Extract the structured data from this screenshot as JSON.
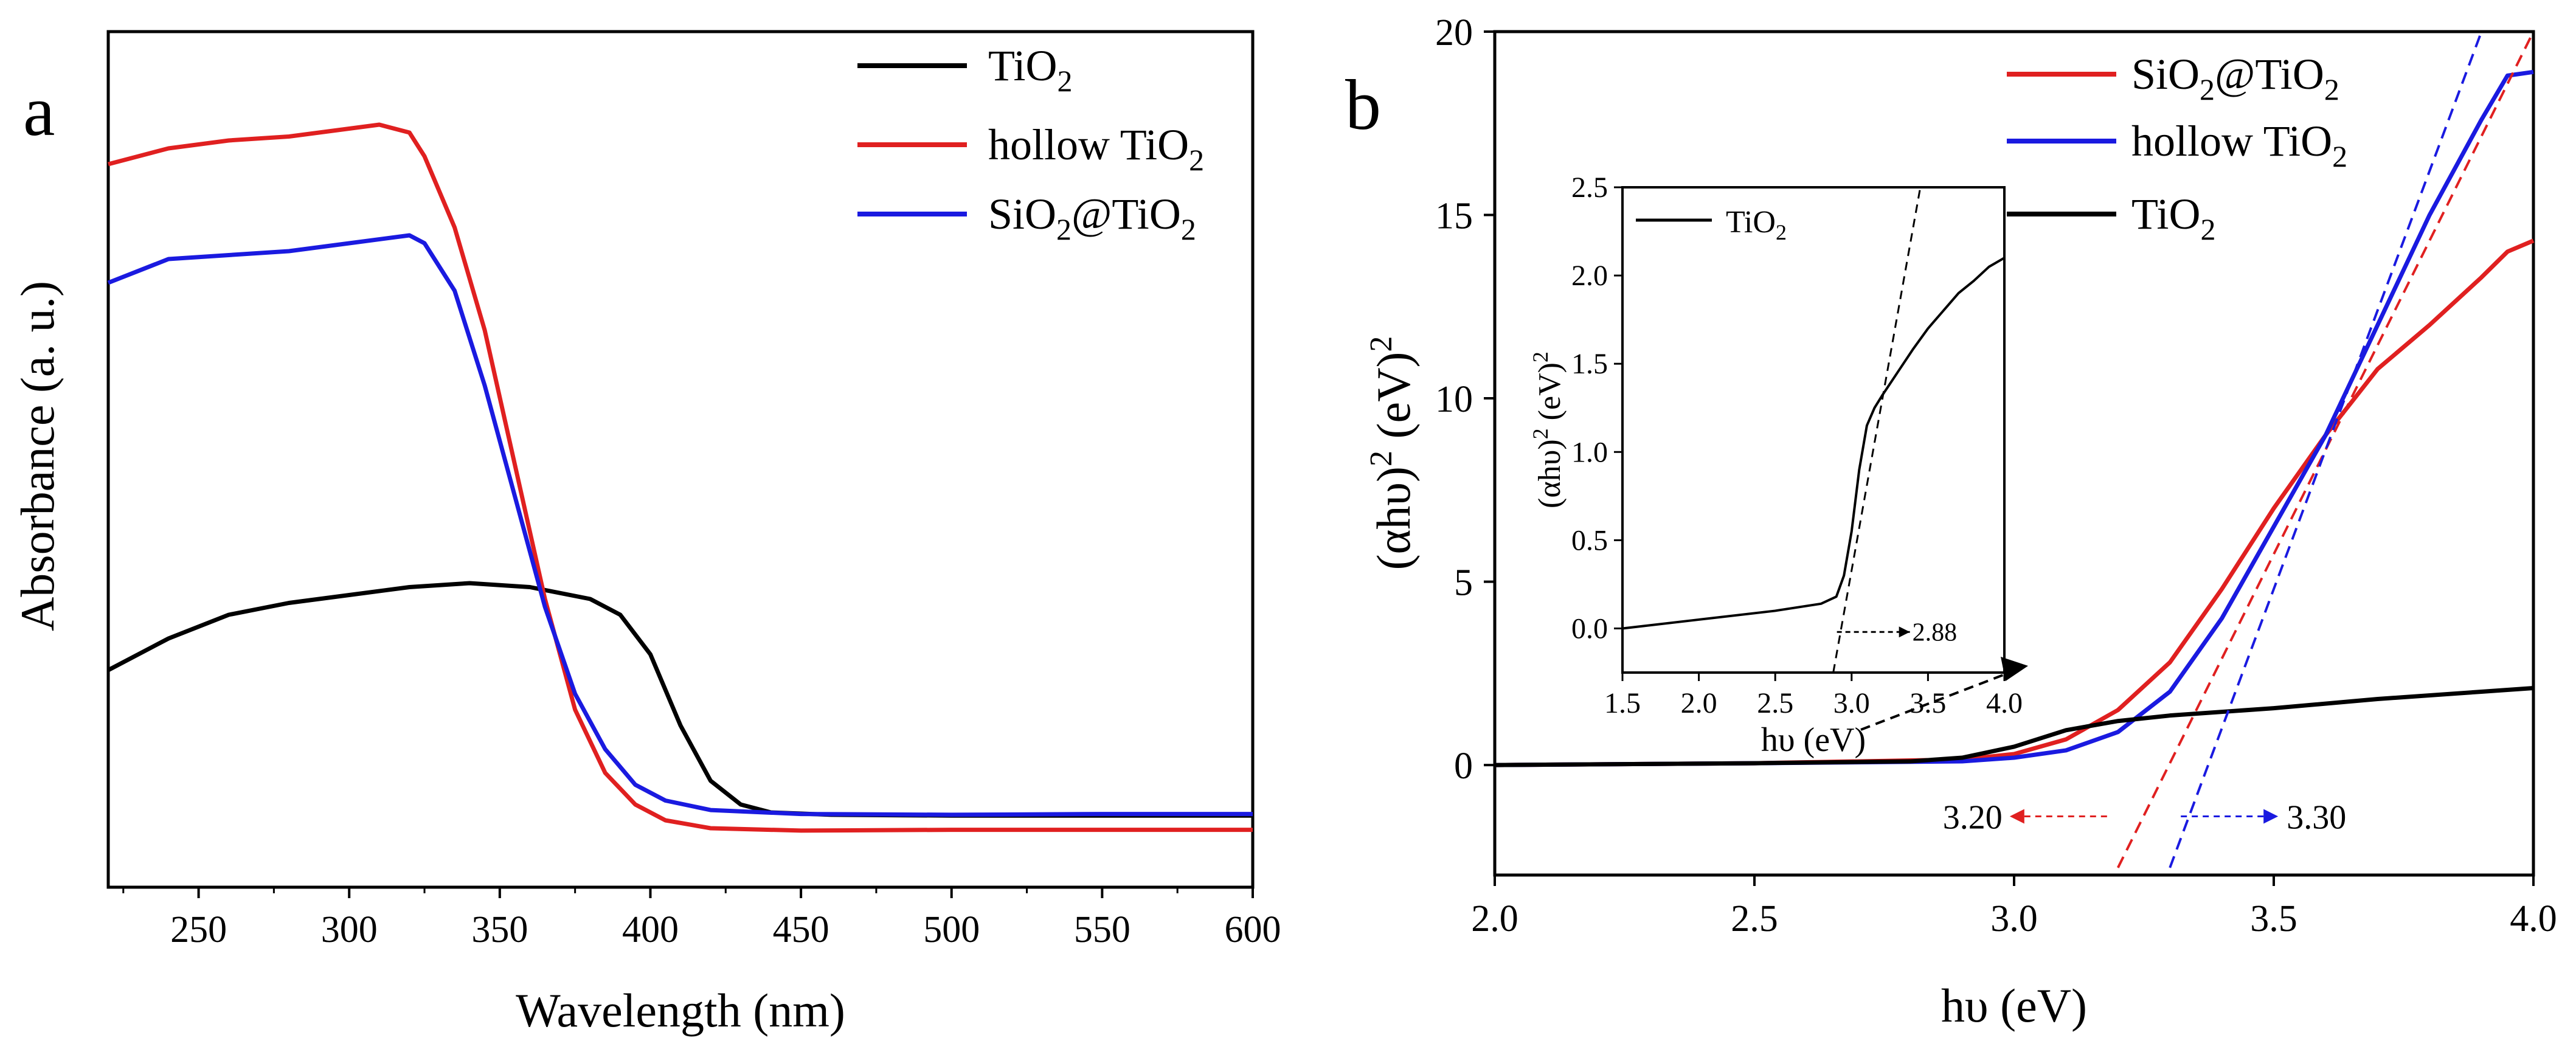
{
  "chart_data": [
    {
      "panel": "a",
      "type": "line",
      "xlabel": "Wavelength (nm)",
      "ylabel": "Absorbance (a. u.)",
      "xlim": [
        220,
        600
      ],
      "ylim": [
        0,
        1
      ],
      "xticks": [
        250,
        300,
        350,
        400,
        450,
        500,
        550,
        600
      ],
      "yticks_shown": false,
      "legend": {
        "position": "top-right",
        "entries": [
          "TiO2",
          "hollow TiO2",
          "SiO2@TiO2"
        ]
      },
      "series": [
        {
          "name": "TiO2",
          "color": "#000000",
          "x": [
            220,
            240,
            260,
            280,
            300,
            320,
            340,
            360,
            380,
            390,
            400,
            410,
            420,
            430,
            440,
            460,
            500,
            550,
            600
          ],
          "y": [
            0.26,
            0.3,
            0.33,
            0.345,
            0.355,
            0.365,
            0.37,
            0.365,
            0.35,
            0.33,
            0.28,
            0.19,
            0.12,
            0.09,
            0.08,
            0.077,
            0.076,
            0.076,
            0.076
          ]
        },
        {
          "name": "hollow TiO2",
          "color": "#e02020",
          "x": [
            220,
            240,
            260,
            280,
            300,
            310,
            320,
            325,
            335,
            345,
            355,
            365,
            375,
            385,
            395,
            405,
            420,
            450,
            500,
            550,
            600
          ],
          "y": [
            0.9,
            0.92,
            0.93,
            0.935,
            0.945,
            0.95,
            0.94,
            0.91,
            0.82,
            0.69,
            0.52,
            0.35,
            0.21,
            0.13,
            0.09,
            0.07,
            0.06,
            0.057,
            0.058,
            0.058,
            0.058
          ]
        },
        {
          "name": "SiO2@TiO2",
          "color": "#1a1ae0",
          "x": [
            220,
            240,
            260,
            280,
            300,
            320,
            325,
            335,
            345,
            355,
            365,
            375,
            385,
            395,
            405,
            420,
            450,
            500,
            550,
            600
          ],
          "y": [
            0.75,
            0.78,
            0.785,
            0.79,
            0.8,
            0.81,
            0.8,
            0.74,
            0.62,
            0.48,
            0.34,
            0.23,
            0.16,
            0.115,
            0.095,
            0.083,
            0.078,
            0.077,
            0.078,
            0.078
          ]
        }
      ]
    },
    {
      "panel": "b",
      "type": "line",
      "xlabel": "hυ (eV)",
      "ylabel": "(αhυ)2 (eV)2",
      "xlim": [
        2.0,
        4.0
      ],
      "ylim": [
        -3,
        20
      ],
      "xticks": [
        2.0,
        2.5,
        3.0,
        3.5,
        4.0
      ],
      "yticks": [
        0,
        5,
        10,
        15,
        20
      ],
      "legend": {
        "position": "top-right",
        "entries": [
          "SiO2@TiO2",
          "hollow TiO2",
          "TiO2"
        ]
      },
      "series": [
        {
          "name": "SiO2@TiO2",
          "color": "#e02020",
          "x": [
            2.0,
            2.5,
            2.9,
            3.0,
            3.1,
            3.2,
            3.3,
            3.4,
            3.5,
            3.6,
            3.7,
            3.8,
            3.9,
            3.95,
            4.0
          ],
          "y": [
            0.0,
            0.05,
            0.15,
            0.3,
            0.7,
            1.5,
            2.8,
            4.8,
            7.0,
            9.0,
            10.8,
            12.0,
            13.3,
            14.0,
            14.3
          ]
        },
        {
          "name": "hollow TiO2",
          "color": "#1a1ae0",
          "x": [
            2.0,
            2.5,
            2.9,
            3.0,
            3.1,
            3.2,
            3.3,
            3.4,
            3.5,
            3.6,
            3.7,
            3.8,
            3.9,
            3.95,
            4.0
          ],
          "y": [
            0.0,
            0.05,
            0.1,
            0.2,
            0.4,
            0.9,
            2.0,
            4.0,
            6.5,
            9.0,
            12.0,
            15.0,
            17.6,
            18.8,
            18.9
          ]
        },
        {
          "name": "TiO2",
          "color": "#000000",
          "x": [
            2.0,
            2.5,
            2.8,
            2.9,
            3.0,
            3.1,
            3.2,
            3.3,
            3.5,
            3.7,
            3.9,
            4.0
          ],
          "y": [
            0.0,
            0.05,
            0.1,
            0.2,
            0.5,
            0.95,
            1.2,
            1.35,
            1.55,
            1.8,
            2.0,
            2.1
          ]
        }
      ],
      "tangents": [
        {
          "color": "#e02020",
          "x1": 3.2,
          "y1": -2.8,
          "x2": 4.0,
          "y2": 20
        },
        {
          "color": "#1a1ae0",
          "x1": 3.3,
          "y1": -2.8,
          "x2": 3.9,
          "y2": 20
        }
      ],
      "annotations": [
        {
          "text": "3.20",
          "x": 3.2,
          "direction": "left",
          "color": "#e02020"
        },
        {
          "text": "3.30",
          "x": 3.3,
          "direction": "right",
          "color": "#1a1ae0"
        }
      ],
      "inset": {
        "type": "line",
        "xlabel": "hυ (eV)",
        "ylabel": "(αhυ)2 (eV)2",
        "xlim": [
          1.5,
          4.0
        ],
        "ylim": [
          -0.25,
          2.5
        ],
        "xticks": [
          1.5,
          2.0,
          2.5,
          3.0,
          3.5,
          4.0
        ],
        "yticks": [
          0.0,
          0.5,
          1.0,
          1.5,
          2.0,
          2.5
        ],
        "legend_entry": "TiO2",
        "series": {
          "name": "TiO2",
          "color": "#000000",
          "x": [
            1.5,
            2.0,
            2.5,
            2.8,
            2.9,
            2.95,
            3.0,
            3.05,
            3.1,
            3.15,
            3.2,
            3.3,
            3.4,
            3.5,
            3.6,
            3.7,
            3.8,
            3.9,
            4.0
          ],
          "y": [
            0.0,
            0.05,
            0.1,
            0.14,
            0.18,
            0.3,
            0.55,
            0.9,
            1.15,
            1.25,
            1.32,
            1.45,
            1.58,
            1.7,
            1.8,
            1.9,
            1.97,
            2.05,
            2.1
          ]
        },
        "tangent": {
          "x1": 2.88,
          "y1": -0.25,
          "x2": 3.45,
          "y2": 2.5
        },
        "annotation": {
          "text": "2.88",
          "x": 2.88
        }
      }
    }
  ],
  "labels": {
    "panel_a": "a",
    "panel_b": "b",
    "tio2_base": "TiO",
    "sio2_base": "SiO",
    "hollow_prefix": "hollow ",
    "at_sign": "@",
    "subscript_two": "2",
    "abs_ylabel": "Absorbance (a. u.)",
    "abs_xlabel": "Wavelength (nm)",
    "bg_xlabel": "hυ (eV)",
    "bg_ylabel_base": "(αhυ)",
    "bg_ylabel_unit": " (eV)",
    "inset_xlabel": "hυ (eV)",
    "superscript_two": "2"
  }
}
